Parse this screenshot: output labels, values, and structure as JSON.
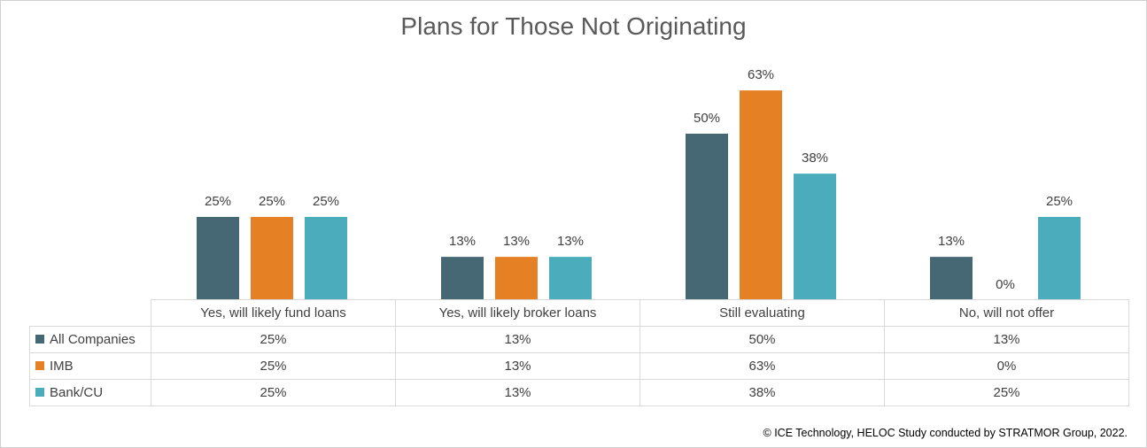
{
  "colors": {
    "All Companies": "#466875",
    "IMB": "#e58124",
    "Bank/CU": "#4bacbc"
  },
  "footer": "© ICE Technology, HELOC Study conducted by STRATMOR Group, 2022.",
  "chart_data": {
    "type": "bar",
    "title": "Plans for Those Not Originating",
    "categories": [
      "Yes, will likely fund loans",
      "Yes, will likely broker loans",
      "Still evaluating",
      "No, will not offer"
    ],
    "series": [
      {
        "name": "All Companies",
        "values": [
          25,
          13,
          50,
          13
        ],
        "labels": [
          "25%",
          "13%",
          "50%",
          "13%"
        ]
      },
      {
        "name": "IMB",
        "values": [
          25,
          13,
          63,
          0
        ],
        "labels": [
          "25%",
          "13%",
          "63%",
          "0%"
        ]
      },
      {
        "name": "Bank/CU",
        "values": [
          25,
          13,
          38,
          25
        ],
        "labels": [
          "25%",
          "13%",
          "38%",
          "25%"
        ]
      }
    ],
    "ylim": [
      0,
      70
    ],
    "grid": false,
    "legend": "data table"
  }
}
